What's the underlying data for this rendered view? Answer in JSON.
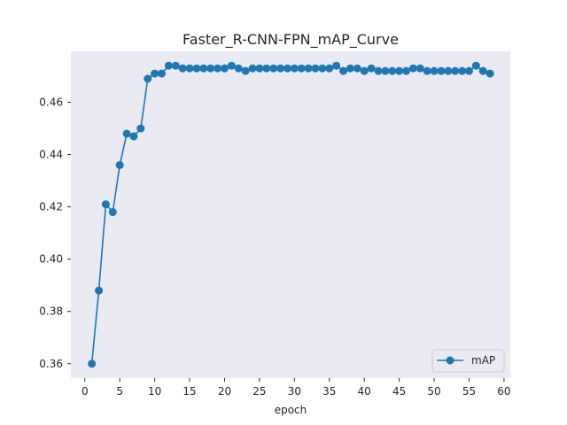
{
  "chart_data": {
    "type": "line",
    "title": "Faster_R-CNN-FPN_mAP_Curve",
    "xlabel": "epoch",
    "ylabel": "",
    "xlim": [
      -2,
      60.9
    ],
    "ylim": [
      0.3545,
      0.4795
    ],
    "xticks": [
      0,
      5,
      10,
      15,
      20,
      25,
      30,
      35,
      40,
      45,
      50,
      55,
      60
    ],
    "yticks": [
      0.36,
      0.38,
      0.4,
      0.42,
      0.44,
      0.46
    ],
    "ytick_labels": [
      "0.36",
      "0.38",
      "0.40",
      "0.42",
      "0.44",
      "0.46"
    ],
    "grid": false,
    "legend_position": "lower right",
    "colors": {
      "background": "#eaeaf2",
      "series": "#1f77b4",
      "text": "#262626"
    },
    "series": [
      {
        "name": "mAP",
        "marker": "circle",
        "x": [
          1,
          2,
          3,
          4,
          5,
          6,
          7,
          8,
          9,
          10,
          11,
          12,
          13,
          14,
          15,
          16,
          17,
          18,
          19,
          20,
          21,
          22,
          23,
          24,
          25,
          26,
          27,
          28,
          29,
          30,
          31,
          32,
          33,
          34,
          35,
          36,
          37,
          38,
          39,
          40,
          41,
          42,
          43,
          44,
          45,
          46,
          47,
          48,
          49,
          50,
          51,
          52,
          53,
          54,
          55,
          56,
          57,
          58
        ],
        "values": [
          0.36,
          0.388,
          0.421,
          0.418,
          0.436,
          0.448,
          0.447,
          0.45,
          0.469,
          0.471,
          0.471,
          0.474,
          0.474,
          0.473,
          0.473,
          0.473,
          0.473,
          0.473,
          0.473,
          0.473,
          0.474,
          0.473,
          0.472,
          0.473,
          0.473,
          0.473,
          0.473,
          0.473,
          0.473,
          0.473,
          0.473,
          0.473,
          0.473,
          0.473,
          0.473,
          0.474,
          0.472,
          0.473,
          0.473,
          0.472,
          0.473,
          0.472,
          0.472,
          0.472,
          0.472,
          0.472,
          0.473,
          0.473,
          0.472,
          0.472,
          0.472,
          0.472,
          0.472,
          0.472,
          0.472,
          0.474,
          0.472,
          0.471
        ]
      }
    ]
  }
}
